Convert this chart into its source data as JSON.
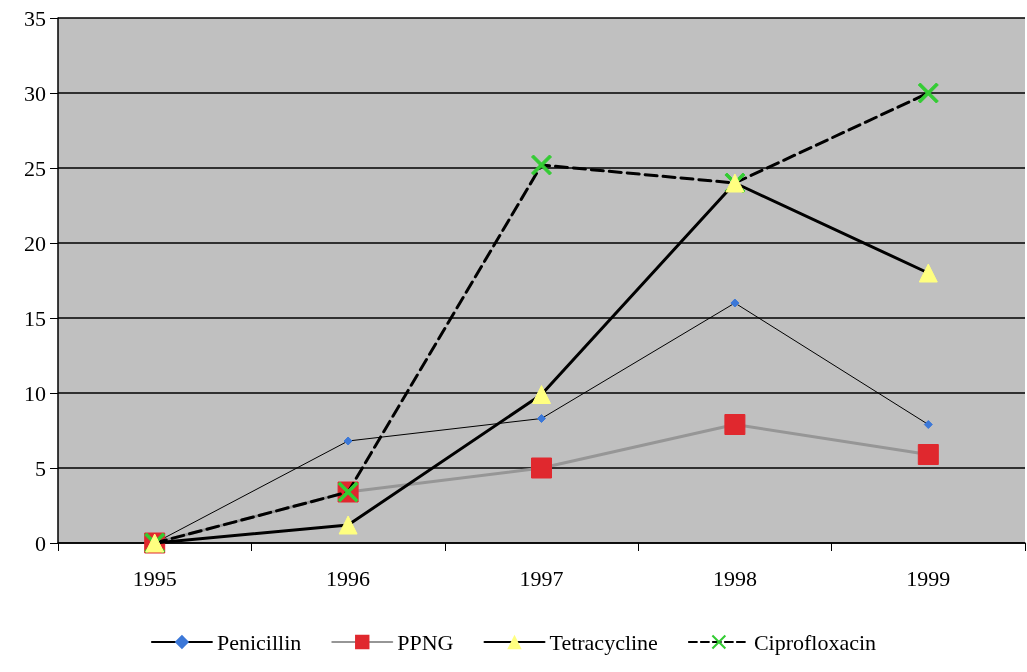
{
  "chart_data": {
    "type": "line",
    "categories": [
      "1995",
      "1996",
      "1997",
      "1998",
      "1999"
    ],
    "series": [
      {
        "name": "Penicillin",
        "color": "#000000",
        "colors": [
          "#3c78d8",
          "#3c78d8",
          "#3c78d8",
          "#3c78d8",
          "#3c78d8"
        ],
        "marker": "diamond",
        "line_style": "solid",
        "values": [
          0,
          6.8,
          8.3,
          16,
          7.9
        ]
      },
      {
        "name": "PPNG",
        "color": "#969696",
        "colors": [
          "#e0282e",
          "#e0282e",
          "#e0282e",
          "#e0282e",
          "#e0282e"
        ],
        "marker": "square",
        "line_style": "solid",
        "values": [
          0,
          3.4,
          5,
          7.9,
          5.9
        ]
      },
      {
        "name": "Tetracycline",
        "color": "#000000",
        "colors": [
          "#ffff80",
          "#ffff80",
          "#ffff80",
          "#ffff80",
          "#ffff80"
        ],
        "marker": "triangle",
        "line_style": "solid",
        "values": [
          0,
          1.2,
          9.9,
          24,
          18
        ]
      },
      {
        "name": "Ciprofloxacin",
        "color": "#000000",
        "colors": [
          "#33cc33",
          "#33cc33",
          "#33cc33",
          "#33cc33",
          "#33cc33"
        ],
        "marker": "cross",
        "line_style": "dashed",
        "values": [
          0,
          3.4,
          25.2,
          24,
          30
        ]
      }
    ],
    "ylim": [
      0,
      35
    ],
    "yticks": [
      0,
      5,
      10,
      15,
      20,
      25,
      30,
      35
    ],
    "grid": "y",
    "legend": "bottom"
  }
}
